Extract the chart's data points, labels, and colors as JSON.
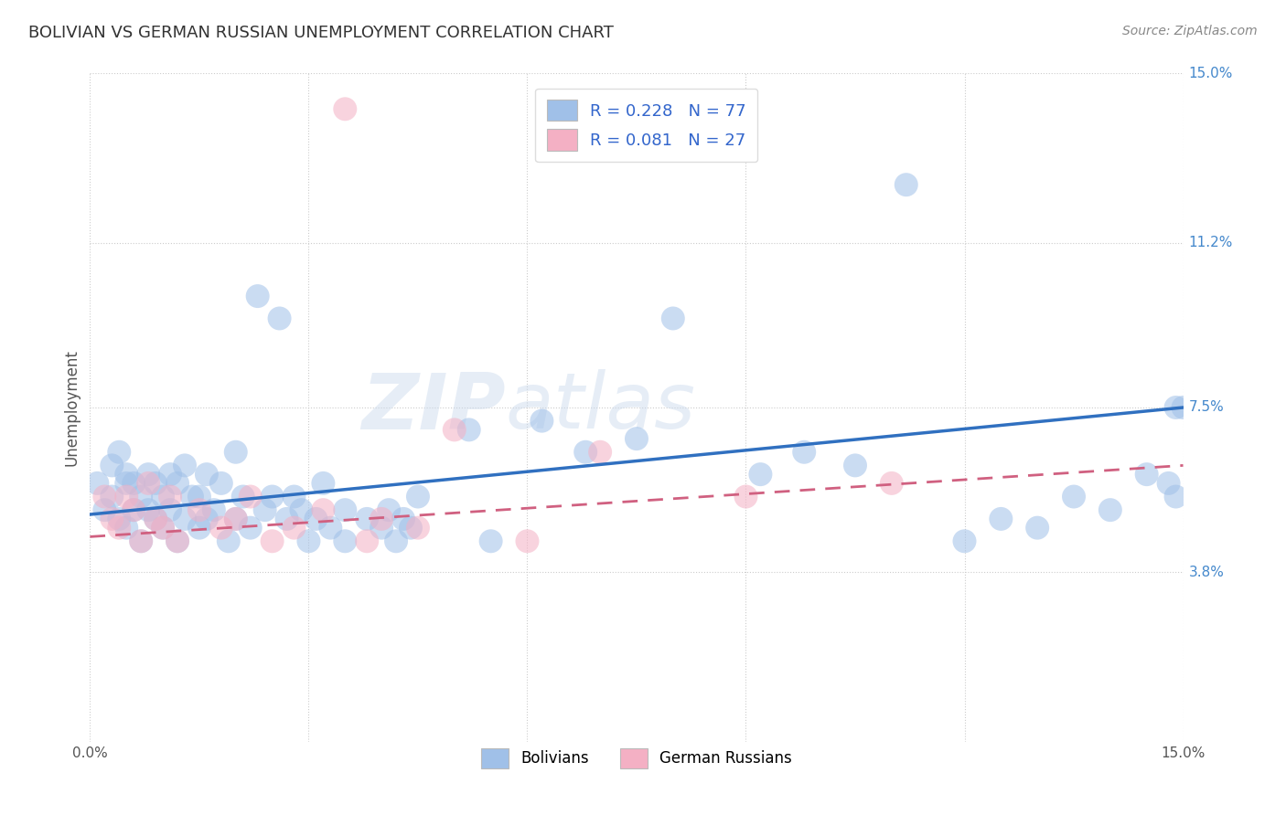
{
  "title": "BOLIVIAN VS GERMAN RUSSIAN UNEMPLOYMENT CORRELATION CHART",
  "source_text": "Source: ZipAtlas.com",
  "ylabel": "Unemployment",
  "xlim": [
    0,
    15
  ],
  "ylim": [
    0,
    15
  ],
  "ytick_positions": [
    15.0,
    11.2,
    7.5,
    3.8
  ],
  "ytick_labels": [
    "15.0%",
    "11.2%",
    "7.5%",
    "3.8%"
  ],
  "legend_items": [
    {
      "label": "R = 0.228   N = 77",
      "color": "#aec6e8"
    },
    {
      "label": "R = 0.081   N = 27",
      "color": "#f4b8c8"
    }
  ],
  "bottom_legend": [
    {
      "label": "Bolivians",
      "color": "#aec6e8"
    },
    {
      "label": "German Russians",
      "color": "#f4b8c8"
    }
  ],
  "blue_scatter_color": "#a0c0e8",
  "pink_scatter_color": "#f4b0c4",
  "blue_line_color": "#3070c0",
  "pink_line_color": "#d06080",
  "background_color": "#ffffff",
  "watermark": "ZIPatlas",
  "grid_color": "#cccccc",
  "bolivians_x": [
    0.1,
    0.2,
    0.3,
    0.3,
    0.4,
    0.4,
    0.5,
    0.5,
    0.5,
    0.6,
    0.6,
    0.7,
    0.7,
    0.8,
    0.8,
    0.9,
    0.9,
    1.0,
    1.0,
    1.1,
    1.1,
    1.2,
    1.2,
    1.3,
    1.3,
    1.4,
    1.5,
    1.5,
    1.6,
    1.6,
    1.7,
    1.8,
    1.9,
    2.0,
    2.0,
    2.1,
    2.2,
    2.3,
    2.4,
    2.5,
    2.6,
    2.7,
    2.8,
    2.9,
    3.0,
    3.1,
    3.2,
    3.3,
    3.5,
    3.5,
    3.8,
    4.0,
    4.1,
    4.2,
    4.3,
    4.4,
    4.5,
    5.2,
    5.5,
    6.2,
    6.8,
    7.5,
    8.0,
    9.2,
    9.8,
    10.5,
    11.2,
    12.0,
    12.5,
    13.0,
    13.5,
    14.0,
    14.5,
    14.8,
    14.9,
    14.9,
    15.0
  ],
  "bolivians_y": [
    5.8,
    5.2,
    5.5,
    6.2,
    5.0,
    6.5,
    5.8,
    4.8,
    6.0,
    5.2,
    5.8,
    4.5,
    5.5,
    5.2,
    6.0,
    5.0,
    5.8,
    4.8,
    5.5,
    5.2,
    6.0,
    4.5,
    5.8,
    5.0,
    6.2,
    5.5,
    4.8,
    5.5,
    5.0,
    6.0,
    5.2,
    5.8,
    4.5,
    5.0,
    6.5,
    5.5,
    4.8,
    10.0,
    5.2,
    5.5,
    9.5,
    5.0,
    5.5,
    5.2,
    4.5,
    5.0,
    5.8,
    4.8,
    4.5,
    5.2,
    5.0,
    4.8,
    5.2,
    4.5,
    5.0,
    4.8,
    5.5,
    7.0,
    4.5,
    7.2,
    6.5,
    6.8,
    9.5,
    6.0,
    6.5,
    6.2,
    12.5,
    4.5,
    5.0,
    4.8,
    5.5,
    5.2,
    6.0,
    5.8,
    5.5,
    7.5,
    7.5
  ],
  "german_russians_x": [
    0.2,
    0.3,
    0.4,
    0.5,
    0.6,
    0.7,
    0.8,
    0.9,
    1.0,
    1.1,
    1.2,
    1.5,
    1.8,
    2.0,
    2.2,
    2.5,
    2.8,
    3.2,
    3.5,
    3.8,
    4.0,
    4.5,
    5.0,
    6.0,
    7.0,
    9.0,
    11.0
  ],
  "german_russians_y": [
    5.5,
    5.0,
    4.8,
    5.5,
    5.2,
    4.5,
    5.8,
    5.0,
    4.8,
    5.5,
    4.5,
    5.2,
    4.8,
    5.0,
    5.5,
    4.5,
    4.8,
    5.2,
    14.2,
    4.5,
    5.0,
    4.8,
    7.0,
    4.5,
    6.5,
    5.5,
    5.8
  ]
}
